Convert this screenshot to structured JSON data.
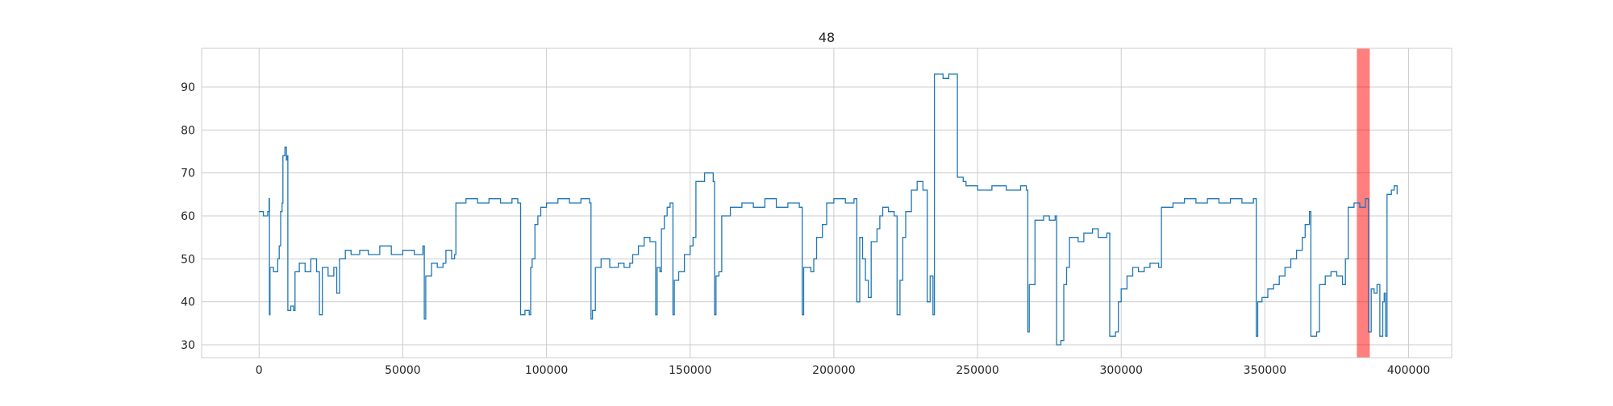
{
  "chart_data": {
    "type": "line",
    "title": "48",
    "xlabel": "",
    "ylabel": "",
    "xlim": [
      -20000,
      415000
    ],
    "ylim": [
      27,
      99
    ],
    "xticks": [
      0,
      50000,
      100000,
      150000,
      200000,
      250000,
      300000,
      350000,
      400000
    ],
    "xtick_labels": [
      "0",
      "50000",
      "100000",
      "150000",
      "200000",
      "250000",
      "300000",
      "350000",
      "400000"
    ],
    "yticks": [
      30,
      40,
      50,
      60,
      70,
      80,
      90
    ],
    "ytick_labels": [
      "30",
      "40",
      "50",
      "60",
      "70",
      "80",
      "90"
    ],
    "grid": true,
    "legend": "none",
    "colors": {
      "line": "#1f77b4",
      "highlight": "#ff0000",
      "grid": "#cccccc",
      "spine": "#cccccc"
    },
    "highlight_spans": [
      {
        "x_start": 382000,
        "x_end": 386500,
        "color": "#ff0000",
        "alpha": 0.5
      }
    ],
    "series": [
      {
        "points": [
          [
            0,
            61
          ],
          [
            1500,
            60
          ],
          [
            3000,
            61
          ],
          [
            3500,
            64
          ],
          [
            3600,
            37
          ],
          [
            3800,
            48
          ],
          [
            5000,
            47
          ],
          [
            6500,
            50
          ],
          [
            7000,
            53
          ],
          [
            7500,
            61
          ],
          [
            8000,
            63
          ],
          [
            8300,
            74
          ],
          [
            9000,
            76
          ],
          [
            9500,
            73
          ],
          [
            9800,
            74
          ],
          [
            10000,
            38
          ],
          [
            11000,
            39
          ],
          [
            12000,
            38
          ],
          [
            12500,
            47
          ],
          [
            14000,
            49
          ],
          [
            16000,
            47
          ],
          [
            18000,
            50
          ],
          [
            20000,
            47
          ],
          [
            21000,
            37
          ],
          [
            22000,
            48
          ],
          [
            24000,
            46
          ],
          [
            26000,
            48
          ],
          [
            27000,
            42
          ],
          [
            28000,
            50
          ],
          [
            30000,
            52
          ],
          [
            32000,
            51
          ],
          [
            35000,
            52
          ],
          [
            38000,
            51
          ],
          [
            42000,
            53
          ],
          [
            46000,
            51
          ],
          [
            50000,
            52
          ],
          [
            54000,
            51
          ],
          [
            57000,
            53
          ],
          [
            57500,
            36
          ],
          [
            58000,
            46
          ],
          [
            60000,
            49
          ],
          [
            62000,
            48
          ],
          [
            64000,
            49
          ],
          [
            65000,
            52
          ],
          [
            67000,
            50
          ],
          [
            68000,
            51
          ],
          [
            68500,
            63
          ],
          [
            72000,
            64
          ],
          [
            76000,
            63
          ],
          [
            80000,
            64
          ],
          [
            84000,
            63
          ],
          [
            88000,
            64
          ],
          [
            90000,
            63
          ],
          [
            91000,
            37
          ],
          [
            92500,
            38
          ],
          [
            94000,
            37
          ],
          [
            94500,
            48
          ],
          [
            95000,
            50
          ],
          [
            96000,
            58
          ],
          [
            97000,
            60
          ],
          [
            98000,
            62
          ],
          [
            100000,
            63
          ],
          [
            104000,
            64
          ],
          [
            108000,
            63
          ],
          [
            112000,
            64
          ],
          [
            115000,
            63
          ],
          [
            115500,
            36
          ],
          [
            116000,
            38
          ],
          [
            117000,
            48
          ],
          [
            119000,
            50
          ],
          [
            122000,
            48
          ],
          [
            125000,
            49
          ],
          [
            127000,
            48
          ],
          [
            129000,
            49
          ],
          [
            130000,
            51
          ],
          [
            132000,
            53
          ],
          [
            134000,
            55
          ],
          [
            136000,
            54
          ],
          [
            138000,
            37
          ],
          [
            138500,
            48
          ],
          [
            139500,
            47
          ],
          [
            140000,
            57
          ],
          [
            141000,
            60
          ],
          [
            142000,
            62
          ],
          [
            143000,
            63
          ],
          [
            144000,
            37
          ],
          [
            144500,
            45
          ],
          [
            146000,
            47
          ],
          [
            148000,
            51
          ],
          [
            150000,
            53
          ],
          [
            151000,
            55
          ],
          [
            152000,
            68
          ],
          [
            155000,
            70
          ],
          [
            158000,
            68
          ],
          [
            158500,
            37
          ],
          [
            159000,
            46
          ],
          [
            160000,
            47
          ],
          [
            161000,
            60
          ],
          [
            164000,
            62
          ],
          [
            168000,
            63
          ],
          [
            172000,
            62
          ],
          [
            176000,
            64
          ],
          [
            180000,
            62
          ],
          [
            184000,
            63
          ],
          [
            188000,
            62
          ],
          [
            189000,
            37
          ],
          [
            189500,
            48
          ],
          [
            192000,
            47
          ],
          [
            193000,
            50
          ],
          [
            194000,
            55
          ],
          [
            196000,
            58
          ],
          [
            197500,
            63
          ],
          [
            200000,
            64
          ],
          [
            204000,
            63
          ],
          [
            207000,
            64
          ],
          [
            208000,
            40
          ],
          [
            209000,
            55
          ],
          [
            210000,
            50
          ],
          [
            211000,
            45
          ],
          [
            212000,
            41
          ],
          [
            213000,
            54
          ],
          [
            215000,
            57
          ],
          [
            216000,
            60
          ],
          [
            217000,
            62
          ],
          [
            219000,
            61
          ],
          [
            221000,
            60
          ],
          [
            222000,
            37
          ],
          [
            223000,
            45
          ],
          [
            224000,
            55
          ],
          [
            225000,
            61
          ],
          [
            227000,
            66
          ],
          [
            229000,
            68
          ],
          [
            231000,
            66
          ],
          [
            232500,
            40
          ],
          [
            233500,
            46
          ],
          [
            234500,
            37
          ],
          [
            235000,
            93
          ],
          [
            238000,
            92
          ],
          [
            240000,
            93
          ],
          [
            242000,
            93
          ],
          [
            243000,
            69
          ],
          [
            245000,
            68
          ],
          [
            246000,
            67
          ],
          [
            250000,
            66
          ],
          [
            255000,
            67
          ],
          [
            260000,
            66
          ],
          [
            265000,
            67
          ],
          [
            267000,
            66
          ],
          [
            267500,
            33
          ],
          [
            268000,
            44
          ],
          [
            270000,
            59
          ],
          [
            273000,
            60
          ],
          [
            275000,
            59
          ],
          [
            277000,
            60
          ],
          [
            277500,
            30
          ],
          [
            279000,
            31
          ],
          [
            280000,
            44
          ],
          [
            281000,
            48
          ],
          [
            282000,
            55
          ],
          [
            285000,
            54
          ],
          [
            287000,
            56
          ],
          [
            290000,
            57
          ],
          [
            292000,
            55
          ],
          [
            295000,
            56
          ],
          [
            296000,
            32
          ],
          [
            298000,
            33
          ],
          [
            299000,
            40
          ],
          [
            300000,
            43
          ],
          [
            302000,
            46
          ],
          [
            304000,
            48
          ],
          [
            306000,
            47
          ],
          [
            308000,
            48
          ],
          [
            310000,
            49
          ],
          [
            313000,
            48
          ],
          [
            314000,
            62
          ],
          [
            318000,
            63
          ],
          [
            322000,
            64
          ],
          [
            326000,
            63
          ],
          [
            330000,
            64
          ],
          [
            334000,
            63
          ],
          [
            338000,
            64
          ],
          [
            342000,
            63
          ],
          [
            346000,
            64
          ],
          [
            347000,
            32
          ],
          [
            347500,
            40
          ],
          [
            349000,
            41
          ],
          [
            351000,
            43
          ],
          [
            353000,
            44
          ],
          [
            355000,
            46
          ],
          [
            357000,
            48
          ],
          [
            359000,
            50
          ],
          [
            361000,
            52
          ],
          [
            363000,
            55
          ],
          [
            364000,
            58
          ],
          [
            365500,
            61
          ],
          [
            366000,
            32
          ],
          [
            368000,
            33
          ],
          [
            369000,
            44
          ],
          [
            371000,
            46
          ],
          [
            373000,
            47
          ],
          [
            375000,
            46
          ],
          [
            377000,
            44
          ],
          [
            378000,
            50
          ],
          [
            379000,
            62
          ],
          [
            381000,
            63
          ],
          [
            383000,
            62
          ],
          [
            385000,
            64
          ],
          [
            386000,
            33
          ],
          [
            387000,
            43
          ],
          [
            388000,
            42
          ],
          [
            389000,
            44
          ],
          [
            390000,
            32
          ],
          [
            391000,
            40
          ],
          [
            391500,
            42
          ],
          [
            392000,
            32
          ],
          [
            392500,
            65
          ],
          [
            394000,
            66
          ],
          [
            395000,
            67
          ],
          [
            396000,
            65
          ]
        ]
      }
    ]
  }
}
